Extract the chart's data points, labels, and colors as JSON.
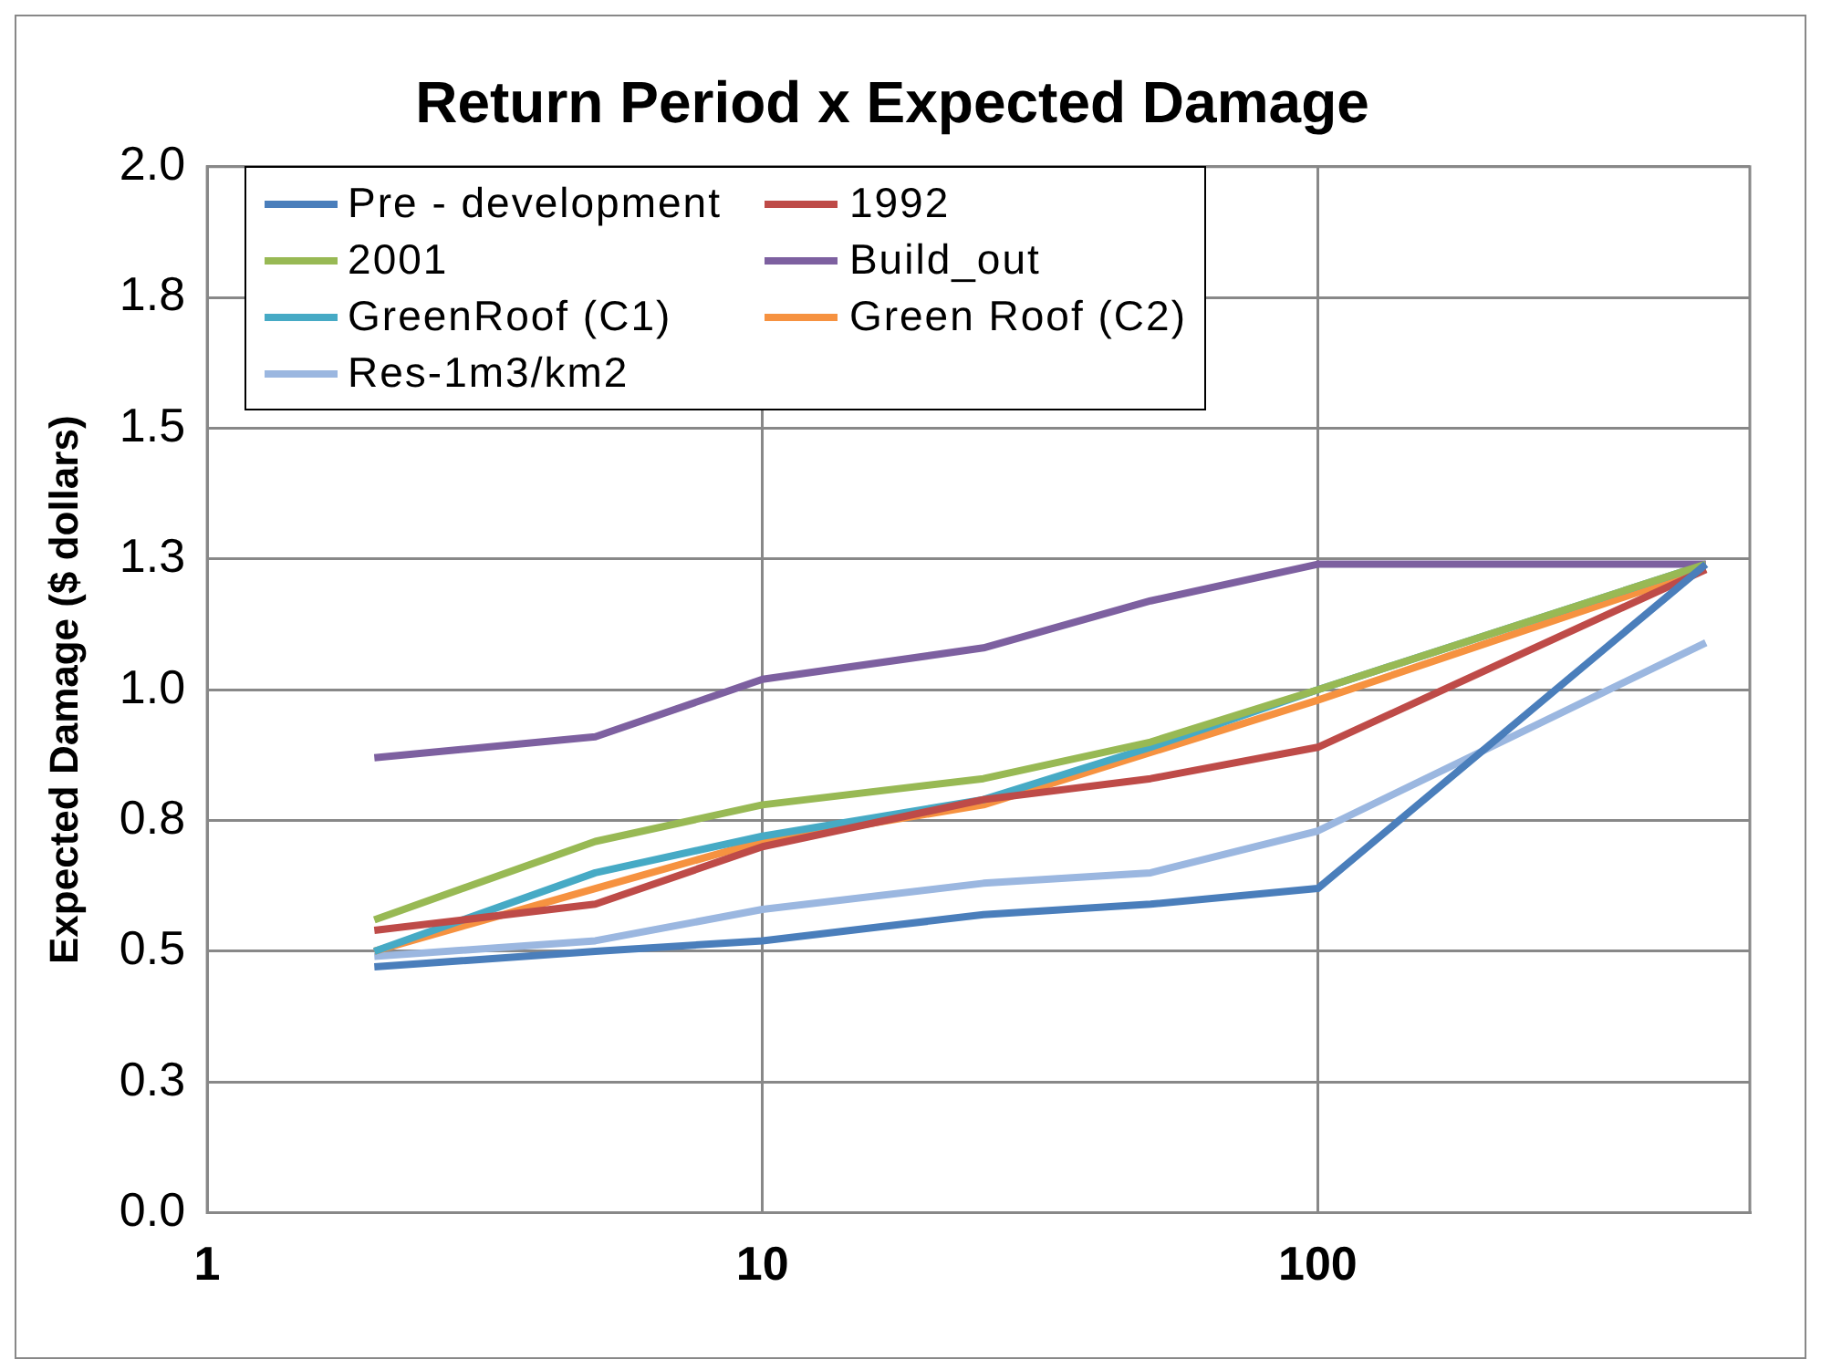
{
  "chart_data": {
    "type": "line",
    "title": "Return Period x Expected Damage",
    "ylabel": "Expected Damage ($ dollars)",
    "log": "x",
    "grid": true,
    "legend": "top",
    "marker": "none",
    "line_style": "solid",
    "x": [
      2,
      5,
      10,
      25,
      50,
      100,
      500
    ],
    "xlim": [
      1,
      600
    ],
    "xticks": [
      1,
      10,
      100
    ],
    "ylim": [
      0,
      2
    ],
    "yticks": [
      {
        "value": 0,
        "label": "0.0"
      },
      {
        "value": 0.25,
        "label": "0.3"
      },
      {
        "value": 0.5,
        "label": "0.5"
      },
      {
        "value": 0.75,
        "label": "0.8"
      },
      {
        "value": 1,
        "label": "1.0"
      },
      {
        "value": 1.25,
        "label": "1.3"
      },
      {
        "value": 1.5,
        "label": "1.5"
      },
      {
        "value": 1.75,
        "label": "1.8"
      },
      {
        "value": 2,
        "label": "2.0"
      }
    ],
    "series": [
      {
        "name": "Pre - development",
        "color": "#4a7ebb",
        "values": [
          0.47,
          0.5,
          0.52,
          0.57,
          0.59,
          0.62,
          1.24
        ]
      },
      {
        "name": "1992",
        "color": "#be4b48",
        "values": [
          0.54,
          0.59,
          0.7,
          0.79,
          0.83,
          0.89,
          1.23
        ]
      },
      {
        "name": "2001",
        "color": "#98b954",
        "values": [
          0.56,
          0.71,
          0.78,
          0.83,
          0.9,
          1.0,
          1.24
        ]
      },
      {
        "name": "Build_out",
        "color": "#7d60a0",
        "values": [
          0.87,
          0.91,
          1.02,
          1.08,
          1.17,
          1.24,
          1.24
        ]
      },
      {
        "name": "GreenRoof (C1)",
        "color": "#46aac5",
        "values": [
          0.5,
          0.65,
          0.72,
          0.79,
          0.89,
          1.0,
          1.24
        ]
      },
      {
        "name": "Green Roof (C2)",
        "color": "#f69240",
        "values": [
          0.5,
          0.62,
          0.71,
          0.78,
          0.88,
          0.98,
          1.23
        ]
      },
      {
        "name": "Res-1m3/km2",
        "color": "#9bb7e0",
        "values": [
          0.49,
          0.52,
          0.58,
          0.63,
          0.65,
          0.73,
          1.09
        ]
      }
    ]
  }
}
